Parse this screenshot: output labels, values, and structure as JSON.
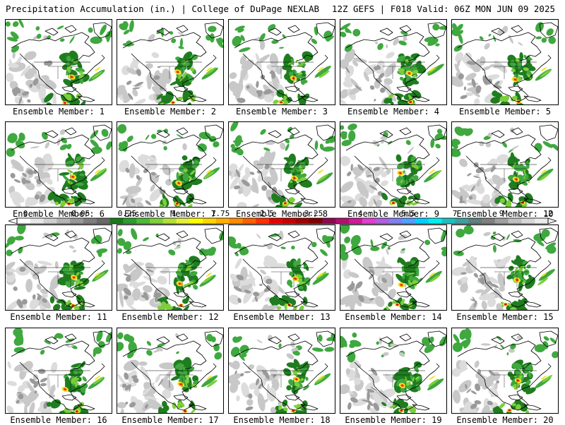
{
  "header": {
    "title": "Precipitation Accumulation (in.) | College of DuPage NEXLAB",
    "run_info": "12Z GEFS | F018 Valid: 06Z MON JUN 09 2025"
  },
  "panels": [
    {
      "label": "Ensemble Member: 1"
    },
    {
      "label": "Ensemble Member: 2"
    },
    {
      "label": "Ensemble Member: 3"
    },
    {
      "label": "Ensemble Member: 4"
    },
    {
      "label": "Ensemble Member: 5"
    },
    {
      "label": "Ensemble Member: 6"
    },
    {
      "label": "Ensemble Member: 7"
    },
    {
      "label": "Ensemble Member: 8"
    },
    {
      "label": "Ensemble Member: 9"
    },
    {
      "label": "Ensemble Member: 10"
    },
    {
      "label": "Ensemble Member: 11"
    },
    {
      "label": "Ensemble Member: 12"
    },
    {
      "label": "Ensemble Member: 13"
    },
    {
      "label": "Ensemble Member: 14"
    },
    {
      "label": "Ensemble Member: 15"
    },
    {
      "label": "Ensemble Member: 16"
    },
    {
      "label": "Ensemble Member: 17"
    },
    {
      "label": "Ensemble Member: 18"
    },
    {
      "label": "Ensemble Member: 19"
    },
    {
      "label": "Ensemble Member: 20"
    }
  ],
  "colorbar": {
    "labels": [
      "0",
      "0.05",
      "0.25",
      "1",
      "1.75",
      "2.5",
      "3.25",
      "4",
      "5.5",
      "7",
      "9",
      "12"
    ],
    "colors": [
      "#ffffff",
      "#e8e8e8",
      "#cfcfcf",
      "#b4b4b4",
      "#999999",
      "#7f7f7f",
      "#6a6a6a",
      "#1a7a1a",
      "#2e9c2e",
      "#4fba3a",
      "#7ed13a",
      "#b4e03a",
      "#e6f03a",
      "#ffff00",
      "#ffd700",
      "#ffb000",
      "#ff8c00",
      "#ff6000",
      "#ff3000",
      "#e60000",
      "#c80000",
      "#a00000",
      "#800000",
      "#8b0a50",
      "#b0106e",
      "#d01a9a",
      "#e040d0",
      "#b060e0",
      "#8080f0",
      "#50a0ff",
      "#00d0ff",
      "#00f0f0",
      "#20c0c0",
      "#40a0a0",
      "#608080",
      "#808080",
      "#a0a0a0",
      "#c0c0c0",
      "#d8d8d8",
      "#ececec"
    ]
  },
  "map_colors": {
    "land": "#ffffff",
    "trace": "#c8c8c8",
    "light": "#9a9a9a",
    "green_dark": "#1f7d1f",
    "green": "#3fa83f",
    "green_light": "#7ccf3a",
    "yellow": "#f0e832",
    "orange": "#ff9a00",
    "red": "#e01818"
  }
}
